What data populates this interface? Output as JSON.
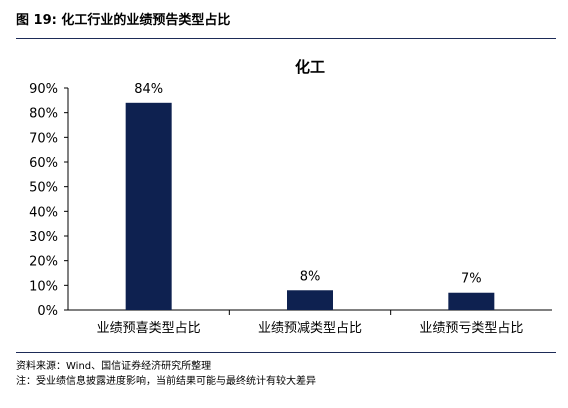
{
  "figure": {
    "title": "图 19:  化工行业的业绩预告类型占比"
  },
  "chart_data": {
    "type": "bar",
    "title": "化工",
    "categories": [
      "业绩预喜类型占比",
      "业绩预减类型占比",
      "业绩预亏类型占比"
    ],
    "values": [
      84,
      8,
      7
    ],
    "data_labels": [
      "84%",
      "8%",
      "7%"
    ],
    "ylim": [
      0,
      90
    ],
    "yticks": [
      0,
      10,
      20,
      30,
      40,
      50,
      60,
      70,
      80,
      90
    ],
    "ytick_labels": [
      "0%",
      "10%",
      "20%",
      "30%",
      "40%",
      "50%",
      "60%",
      "70%",
      "80%",
      "90%"
    ],
    "xlabel": "",
    "ylabel": "",
    "grid": false,
    "bar_color": "#0e2150"
  },
  "footer": {
    "source": "资料来源：Wind、国信证券经济研究所整理",
    "note": "注：受业绩信息披露进度影响，当前结果可能与最终统计有较大差异"
  }
}
